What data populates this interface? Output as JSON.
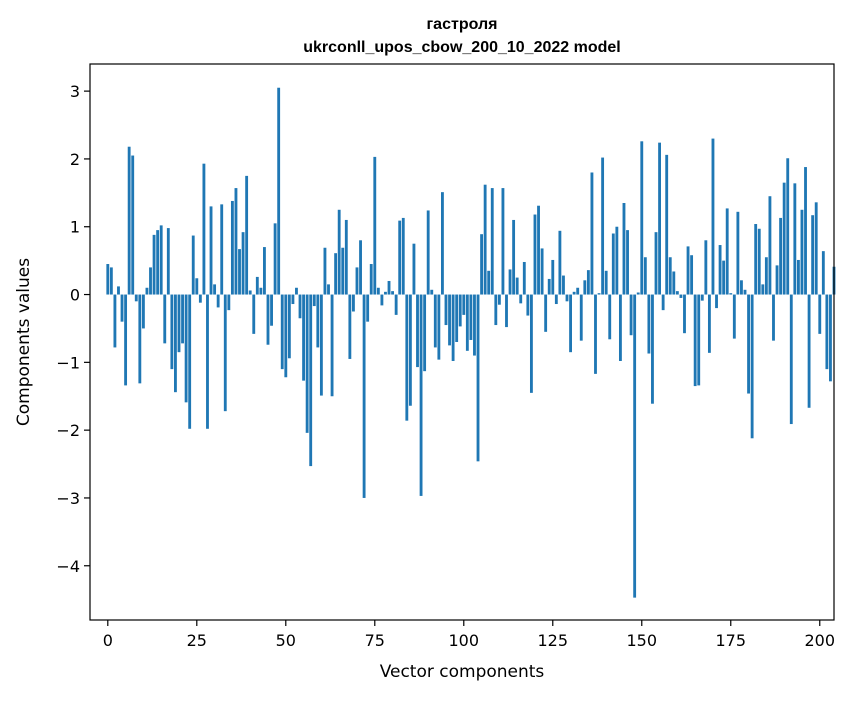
{
  "chart_data": {
    "type": "bar",
    "title": "гастроля",
    "subtitle": "ukrconll_upos_cbow_200_10_2022 model",
    "xlabel": "Vector components",
    "ylabel": "Components values",
    "xlim": [
      -5,
      204
    ],
    "ylim": [
      -4.8,
      3.4
    ],
    "xticks": [
      0,
      25,
      50,
      75,
      100,
      125,
      150,
      175,
      200
    ],
    "yticks": [
      3,
      2,
      1,
      0,
      -1,
      -2,
      -3,
      -4
    ],
    "xtick_labels": [
      "0",
      "25",
      "50",
      "75",
      "100",
      "125",
      "150",
      "175",
      "200"
    ],
    "ytick_labels": [
      "3",
      "2",
      "1",
      "0",
      "−1",
      "−2",
      "−3",
      "−4"
    ],
    "grid": false,
    "bar_color": "#1f77b4",
    "values": [
      0.45,
      0.4,
      -0.78,
      0.12,
      -0.4,
      -1.34,
      2.18,
      2.05,
      -0.1,
      -1.31,
      -0.5,
      0.1,
      0.4,
      0.88,
      0.95,
      1.02,
      -0.72,
      0.98,
      -1.1,
      -1.44,
      -0.85,
      -0.72,
      -1.59,
      -1.98,
      0.87,
      0.24,
      -0.12,
      1.93,
      -1.98,
      1.3,
      0.15,
      -0.19,
      1.33,
      -1.72,
      -0.23,
      1.38,
      1.57,
      0.67,
      0.92,
      1.75,
      0.06,
      -0.58,
      0.26,
      0.1,
      0.7,
      -0.74,
      -0.46,
      1.05,
      3.05,
      -1.1,
      -1.22,
      -0.94,
      -0.14,
      0.1,
      -0.35,
      -1.27,
      -2.04,
      -2.53,
      -0.17,
      -0.78,
      -1.49,
      0.69,
      0.15,
      -1.5,
      0.61,
      1.25,
      0.69,
      1.1,
      -0.95,
      -0.25,
      0.4,
      0.8,
      -3.0,
      -0.4,
      0.45,
      2.03,
      0.1,
      -0.16,
      0.04,
      0.2,
      0.05,
      -0.3,
      1.09,
      1.13,
      -1.86,
      -1.64,
      0.75,
      -1.07,
      -2.97,
      -1.13,
      1.24,
      0.07,
      -0.78,
      -0.96,
      1.51,
      -0.45,
      -0.75,
      -0.98,
      -0.7,
      -0.47,
      -0.3,
      -0.83,
      -0.67,
      -0.9,
      -2.46,
      0.89,
      1.62,
      0.35,
      1.57,
      -0.45,
      -0.15,
      1.57,
      -0.48,
      0.37,
      1.1,
      0.25,
      -0.13,
      0.48,
      -0.31,
      -1.45,
      1.18,
      1.31,
      0.68,
      -0.55,
      0.23,
      0.51,
      -0.14,
      0.94,
      0.28,
      -0.1,
      -0.85,
      0.04,
      0.1,
      -0.68,
      0.21,
      0.36,
      1.8,
      -1.17,
      0.02,
      2.02,
      0.35,
      -0.66,
      0.9,
      1.0,
      -0.98,
      1.35,
      0.95,
      -0.6,
      -4.47,
      0.03,
      2.26,
      0.55,
      -0.87,
      -1.61,
      0.92,
      2.24,
      -0.23,
      2.06,
      0.55,
      0.34,
      0.05,
      -0.05,
      -0.57,
      0.71,
      0.58,
      -1.35,
      -1.34,
      -0.09,
      0.8,
      -0.86,
      2.3,
      -0.2,
      0.73,
      0.5,
      1.27,
      0.02,
      -0.65,
      1.22,
      0.21,
      0.07,
      -1.46,
      -2.12,
      1.04,
      0.97,
      0.15,
      0.55,
      1.45,
      -0.68,
      0.43,
      1.13,
      1.65,
      2.01,
      -1.91,
      1.64,
      0.51,
      1.25,
      1.88,
      -1.67,
      1.17,
      1.36,
      -0.58,
      0.64,
      -1.1,
      -1.28,
      0.41
    ]
  }
}
